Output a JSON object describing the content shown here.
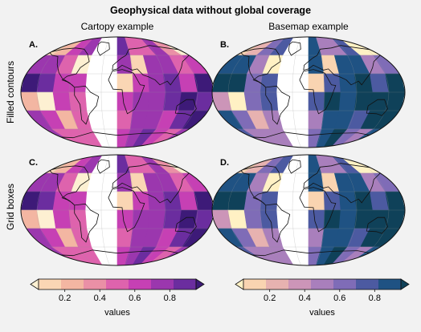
{
  "figure": {
    "title": "Geophysical data without global coverage",
    "col_titles": [
      "Cartopy example",
      "Basemap example"
    ],
    "row_labels": [
      "Filled contours",
      "Grid boxes"
    ],
    "panel_labels": [
      "A.",
      "B.",
      "C.",
      "D."
    ]
  },
  "colorbars": [
    {
      "name": "magma-like",
      "label": "values",
      "ticks": [
        "0.2",
        "0.4",
        "0.6",
        "0.8"
      ],
      "colors": [
        "#fdf0d2",
        "#fad6b4",
        "#f3b6a2",
        "#ea90a6",
        "#de63ad",
        "#c640b4",
        "#9b37ae",
        "#6b2d9f",
        "#3d1a78"
      ],
      "extend": "both"
    },
    {
      "name": "sunset-like",
      "label": "values",
      "ticks": [
        "0.2",
        "0.4",
        "0.6",
        "0.8"
      ],
      "colors": [
        "#fff1c4",
        "#f9d4b1",
        "#e7b2b0",
        "#cc95b8",
        "#a97fbc",
        "#7f6cb7",
        "#4c5aa1",
        "#1f5283",
        "#0f4159"
      ],
      "extend": "both"
    }
  ],
  "chart_data": {
    "type": "heatmap",
    "value_range": [
      0,
      1
    ],
    "cartopy_grid_missing_lon_band": [
      -60,
      -15
    ],
    "basemap_grid_missing_lon_band": [
      -60,
      -15
    ],
    "lon_edges": [
      -180,
      -150,
      -120,
      -90,
      -60,
      -30,
      0,
      30,
      60,
      90,
      120,
      150,
      180
    ],
    "lat_edges": [
      90,
      60,
      30,
      0,
      -30,
      -60,
      -90
    ],
    "values_cartopy": [
      [
        0.15,
        0.3,
        0.6,
        0.7,
        null,
        null,
        0.8,
        0.55,
        0.45,
        0.7,
        0.35,
        0.1
      ],
      [
        0.7,
        0.75,
        0.55,
        0.1,
        null,
        null,
        0.7,
        0.2,
        0.75,
        0.7,
        0.5,
        0.6
      ],
      [
        0.9,
        0.85,
        0.6,
        0.65,
        null,
        null,
        0.2,
        0.65,
        0.7,
        0.8,
        0.6,
        0.9
      ],
      [
        0.3,
        0.1,
        0.6,
        0.55,
        null,
        null,
        0.6,
        0.75,
        0.75,
        0.85,
        0.9,
        0.8
      ],
      [
        0.75,
        0.6,
        0.25,
        0.5,
        null,
        null,
        0.55,
        0.7,
        0.75,
        0.65,
        0.85,
        0.9
      ],
      [
        0.7,
        0.55,
        0.45,
        0.5,
        null,
        null,
        0.6,
        0.7,
        0.8,
        0.6,
        0.5,
        0.7
      ]
    ],
    "values_basemap": [
      [
        0.15,
        0.3,
        0.6,
        0.7,
        null,
        null,
        0.8,
        0.55,
        0.45,
        0.7,
        0.1,
        0.1
      ],
      [
        0.85,
        0.8,
        0.55,
        0.1,
        null,
        null,
        0.85,
        0.2,
        0.85,
        0.85,
        0.5,
        0.6
      ],
      [
        0.95,
        0.9,
        0.6,
        0.75,
        null,
        null,
        0.2,
        0.75,
        0.85,
        0.95,
        0.7,
        0.95
      ],
      [
        0.4,
        0.1,
        0.6,
        0.7,
        null,
        null,
        0.7,
        0.9,
        0.85,
        0.95,
        0.95,
        0.9
      ],
      [
        0.85,
        0.6,
        0.25,
        0.55,
        null,
        null,
        0.55,
        0.85,
        0.85,
        0.75,
        0.95,
        0.95
      ],
      [
        0.75,
        0.55,
        0.45,
        0.55,
        null,
        null,
        0.6,
        0.8,
        0.95,
        0.6,
        0.5,
        0.85
      ]
    ]
  }
}
